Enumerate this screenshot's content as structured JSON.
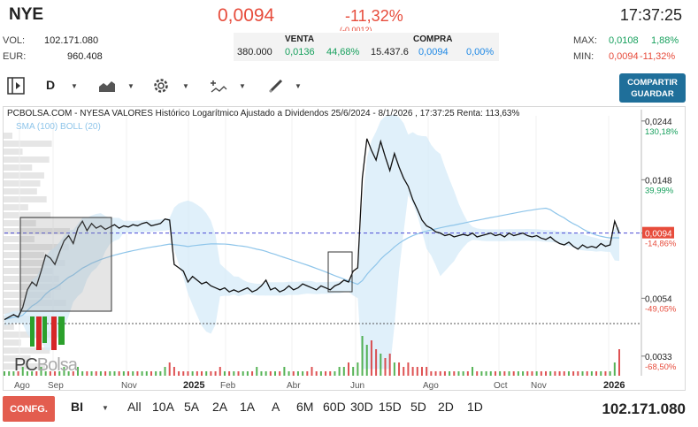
{
  "header": {
    "ticker": "NYE",
    "price": "0,0094",
    "change_pct": "-11,32%",
    "change_sub": "(-0,0012)",
    "time": "17:37:25"
  },
  "stats": {
    "vol_label": "VOL:",
    "vol_value": "102.171.080",
    "eur_label": "EUR:",
    "eur_value": "960.408",
    "max_label": "MAX:",
    "max_value": "0,0108",
    "max_pct": "1,88%",
    "min_label": "MIN:",
    "min_value": "0,0094",
    "min_pct": "-11,32%"
  },
  "orderbook": {
    "sell_label": "VENTA",
    "buy_label": "COMPRA",
    "sell_qty": "380.000",
    "sell_price": "0,0136",
    "sell_pct": "44,68%",
    "buy_qty": "15.437.6",
    "buy_price": "0,0094",
    "buy_pct": "0,00%"
  },
  "toolbar": {
    "period": "D",
    "share_line1": "COMPARTIR",
    "share_line2": "GUARDAR",
    "icons": [
      "panel-toggle-icon",
      "area-chart-icon",
      "gear-icon",
      "indicators-icon",
      "pencil-icon"
    ]
  },
  "chart": {
    "title": "PCBOLSA.COM - NYESA VALORES Histórico Logarítmico Ajustado a Dividendos 25/6/2024 - 8/1/2026 , 17:37:25 Renta: 113,63%",
    "indicators": "SMA (100) BOLL (20)",
    "logo_a": "PC",
    "logo_b": "Bolsa",
    "colors": {
      "line": "#111111",
      "band": "#d6ebf8",
      "sma": "#8ec5ea",
      "boll_mid": "#e8a0a0",
      "current": "#e74c3c",
      "dashed": "#4a4ad6",
      "vol_green": "#2ca02c",
      "vol_red": "#d62728"
    }
  },
  "chart_data": {
    "type": "line",
    "scale": "log",
    "title": "PCBOLSA.COM - NYESA VALORES Histórico Logarítmico Ajustado a Dividendos 25/6/2024 - 8/1/2026 , 17:37:25 Renta: 113,63%",
    "ylim": [
      0.0029,
      0.0255
    ],
    "y_ticks": [
      {
        "value": 0.0244,
        "label": "0,0244",
        "pct": "130,18%"
      },
      {
        "value": 0.0148,
        "label": "0,0148",
        "pct": "39,99%"
      },
      {
        "value": 0.0094,
        "label": "0,0094",
        "pct": "-14,86%"
      },
      {
        "value": 0.0054,
        "label": "0,0054",
        "pct": "-49,05%"
      },
      {
        "value": 0.0033,
        "label": "0,0033",
        "pct": "-68,50%"
      }
    ],
    "x_ticks": [
      "Ago",
      "Sep",
      "Nov",
      "2025",
      "Feb",
      "Abr",
      "Jun",
      "Ago",
      "Oct",
      "Nov",
      "2026"
    ],
    "current_value": "0,0094",
    "series": [
      {
        "values": [
          0.0045,
          0.0046,
          0.0047,
          0.0046,
          0.005,
          0.0058,
          0.0062,
          0.006,
          0.0068,
          0.0078,
          0.0076,
          0.0072,
          0.008,
          0.0088,
          0.0092,
          0.0086,
          0.0098,
          0.0104,
          0.0096,
          0.0102,
          0.0098,
          0.01,
          0.0097,
          0.0099,
          0.0101,
          0.0098,
          0.01,
          0.0099,
          0.0101,
          0.01,
          0.0102,
          0.0103,
          0.01,
          0.0101,
          0.0102,
          0.0106,
          0.0105,
          0.0072,
          0.007,
          0.0068,
          0.0062,
          0.0065,
          0.0063,
          0.0061,
          0.0062,
          0.006,
          0.0059,
          0.0058,
          0.0059,
          0.0057,
          0.0058,
          0.0057,
          0.0058,
          0.0059,
          0.0057,
          0.0058,
          0.006,
          0.0063,
          0.0058,
          0.0059,
          0.0057,
          0.0058,
          0.006,
          0.0058,
          0.0059,
          0.0061,
          0.006,
          0.0059,
          0.0058,
          0.006,
          0.0059,
          0.0058,
          0.006,
          0.0061,
          0.0063,
          0.0062,
          0.0068,
          0.007,
          0.015,
          0.021,
          0.019,
          0.0175,
          0.0205,
          0.018,
          0.016,
          0.0185,
          0.0165,
          0.015,
          0.014,
          0.0125,
          0.0115,
          0.0105,
          0.01,
          0.0098,
          0.0095,
          0.0094,
          0.0092,
          0.0093,
          0.0091,
          0.0092,
          0.0093,
          0.0092,
          0.0094,
          0.0091,
          0.0092,
          0.0093,
          0.0094,
          0.0092,
          0.0093,
          0.0091,
          0.0094,
          0.0092,
          0.0093,
          0.0094,
          0.0092,
          0.0091,
          0.0092,
          0.009,
          0.0089,
          0.0091,
          0.0088,
          0.0086,
          0.0085,
          0.0087,
          0.0084,
          0.0082,
          0.0085,
          0.0083,
          0.0084,
          0.0083,
          0.0086,
          0.0084,
          0.0085,
          0.0104,
          0.0094
        ]
      }
    ],
    "volume": [
      1,
      1,
      1,
      1,
      2,
      1,
      1,
      1,
      2,
      1,
      1,
      1,
      1,
      2,
      1,
      1,
      2,
      1,
      1,
      1,
      1,
      1,
      1,
      1,
      1,
      1,
      1,
      1,
      1,
      1,
      1,
      1,
      1,
      1,
      1,
      2,
      3,
      2,
      1,
      1,
      1,
      1,
      1,
      1,
      1,
      1,
      1,
      2,
      1,
      1,
      1,
      1,
      1,
      1,
      1,
      2,
      1,
      1,
      1,
      1,
      1,
      2,
      1,
      1,
      1,
      1,
      1,
      2,
      1,
      1,
      1,
      1,
      1,
      2,
      2,
      3,
      2,
      3,
      9,
      7,
      8,
      6,
      5,
      4,
      5,
      3,
      3,
      2,
      3,
      2,
      2,
      2,
      2,
      1,
      1,
      1,
      1,
      1,
      1,
      1,
      1,
      1,
      2,
      1,
      1,
      1,
      1,
      1,
      1,
      1,
      1,
      1,
      1,
      1,
      1,
      1,
      1,
      1,
      1,
      1,
      1,
      1,
      1,
      1,
      1,
      1,
      1,
      1,
      1,
      1,
      1,
      1,
      1,
      3,
      6
    ]
  },
  "bottom": {
    "config": "CONFG.",
    "mode": "BI",
    "ranges": [
      "All",
      "10A",
      "5A",
      "2A",
      "1A",
      "A",
      "6M",
      "60D",
      "30D",
      "15D",
      "5D",
      "2D",
      "1D"
    ],
    "volume_total": "102.171.080"
  }
}
